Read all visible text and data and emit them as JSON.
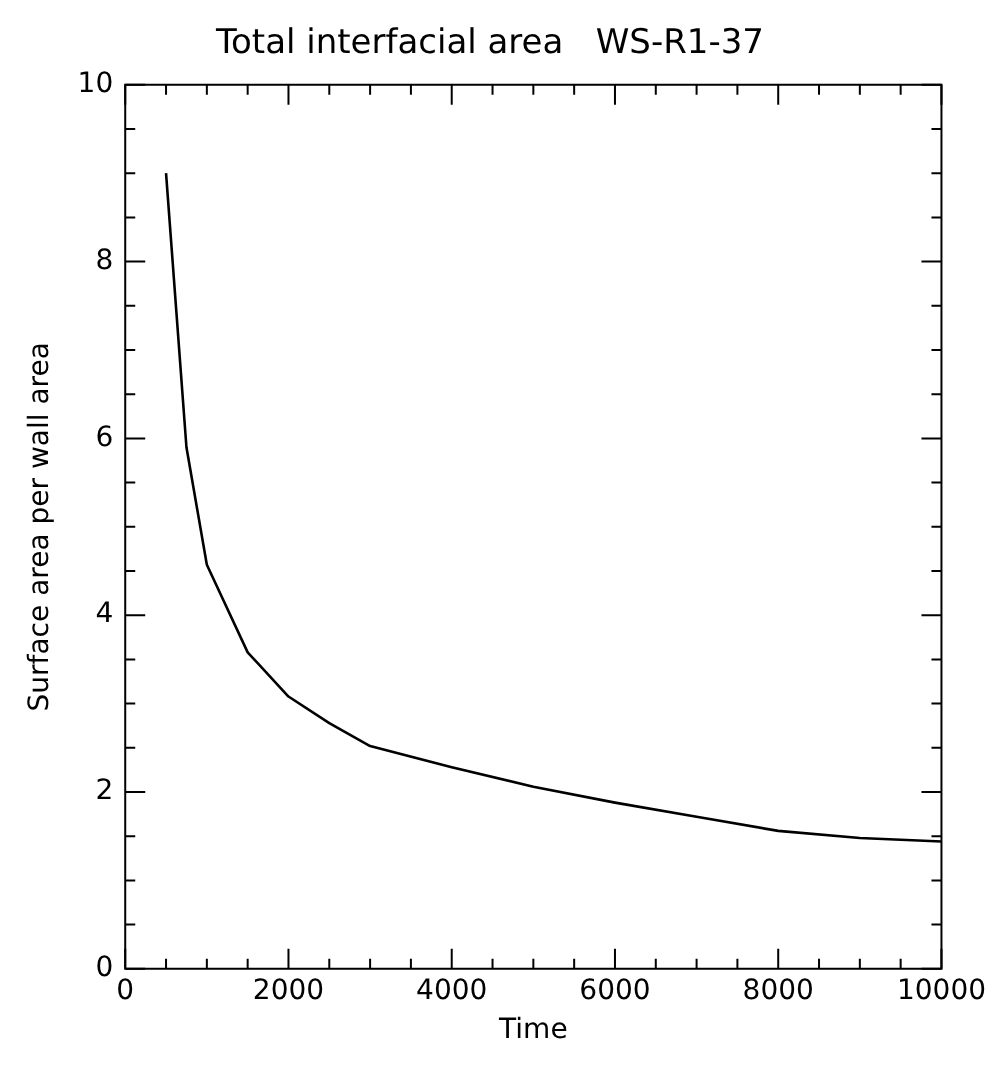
{
  "chart_data": {
    "type": "line",
    "title": "Total interfacial area   WS-R1-37",
    "xlabel": "Time",
    "ylabel": "Surface area per wall area",
    "x": [
      500,
      750,
      1000,
      1500,
      2000,
      2500,
      3000,
      4000,
      5000,
      6000,
      7000,
      8000,
      9000,
      10000
    ],
    "series": [
      {
        "color": "#000000",
        "values": [
          9.0,
          5.9,
          4.57,
          3.58,
          3.08,
          2.78,
          2.52,
          2.28,
          2.06,
          1.88,
          1.72,
          1.56,
          1.48,
          1.44
        ]
      }
    ],
    "xlim": [
      0,
      10000
    ],
    "ylim": [
      0,
      10
    ],
    "xticks": [
      0,
      {
        "value": 500,
        "label": null
      },
      {
        "value": 1000,
        "label": null
      },
      {
        "value": 1500,
        "label": null
      },
      2000,
      {
        "value": 2500,
        "label": null
      },
      {
        "value": 3000,
        "label": null
      },
      {
        "value": 3500,
        "label": null
      },
      4000,
      {
        "value": 4500,
        "label": null
      },
      {
        "value": 5000,
        "label": null
      },
      {
        "value": 5500,
        "label": null
      },
      6000,
      {
        "value": 6500,
        "label": null
      },
      {
        "value": 7000,
        "label": null
      },
      {
        "value": 7500,
        "label": null
      },
      8000,
      {
        "value": 8500,
        "label": null
      },
      {
        "value": 9000,
        "label": null
      },
      {
        "value": 9500,
        "label": null
      },
      10000
    ],
    "yticks": [
      0,
      {
        "value": 0.5,
        "label": null
      },
      {
        "value": 1,
        "label": null
      },
      {
        "value": 1.5,
        "label": null
      },
      2,
      {
        "value": 2.5,
        "label": null
      },
      {
        "value": 3,
        "label": null
      },
      {
        "value": 3.5,
        "label": null
      },
      4,
      {
        "value": 4.5,
        "label": null
      },
      {
        "value": 5,
        "label": null
      },
      {
        "value": 5.5,
        "label": null
      },
      6,
      {
        "value": 6.5,
        "label": null
      },
      {
        "value": 7,
        "label": null
      },
      {
        "value": 7.5,
        "label": null
      },
      8,
      {
        "value": 8.5,
        "label": null
      },
      {
        "value": 9,
        "label": null
      },
      {
        "value": 9.5,
        "label": null
      },
      10
    ],
    "grid": false,
    "legend": false,
    "marker": "none",
    "line_style": "solid"
  }
}
